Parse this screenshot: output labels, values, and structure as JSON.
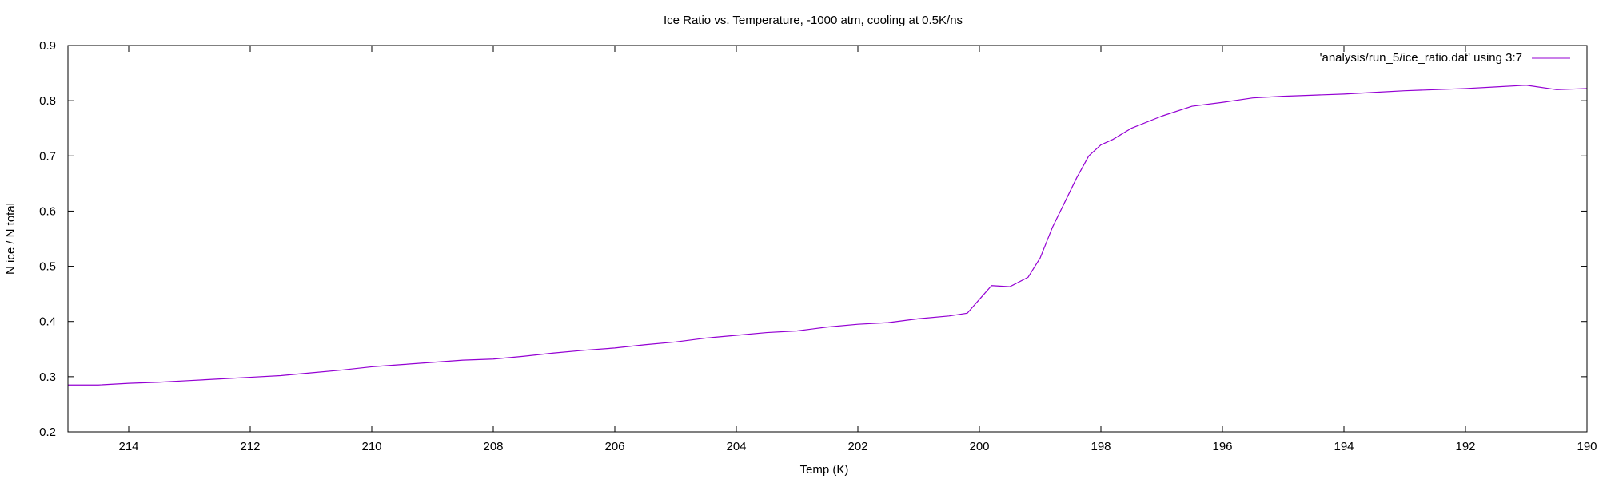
{
  "chart_data": {
    "type": "line",
    "title": "Ice Ratio vs. Temperature, -1000 atm, cooling at 0.5K/ns",
    "xlabel": "Temp (K)",
    "ylabel": "N ice / N total",
    "xlim": [
      215,
      190
    ],
    "ylim": [
      0.2,
      0.9
    ],
    "x_reversed": true,
    "x_ticks": [
      214,
      212,
      210,
      208,
      206,
      204,
      202,
      200,
      198,
      196,
      194,
      192,
      190
    ],
    "y_ticks": [
      0.2,
      0.3,
      0.4,
      0.5,
      0.6,
      0.7,
      0.8,
      0.9
    ],
    "x_tick_labels": [
      "214",
      "212",
      "210",
      "208",
      "206",
      "204",
      "202",
      "200",
      "198",
      "196",
      "194",
      "192",
      "190"
    ],
    "y_tick_labels": [
      "0.2",
      "0.3",
      "0.4",
      "0.5",
      "0.6",
      "0.7",
      "0.8",
      "0.9"
    ],
    "grid": false,
    "legend_position": "top-right",
    "series": [
      {
        "name": "'analysis/run_5/ice_ratio.dat' using 3:7",
        "color": "#9400d3",
        "x": [
          215,
          214.5,
          214,
          213.5,
          213,
          212.5,
          212,
          211.5,
          211,
          210.5,
          210,
          209.5,
          209,
          208.5,
          208,
          207.5,
          207,
          206.5,
          206,
          205.5,
          205,
          204.5,
          204,
          203.5,
          203,
          202.5,
          202,
          201.5,
          201,
          200.5,
          200.2,
          200,
          199.8,
          199.5,
          199.2,
          199,
          198.8,
          198.6,
          198.4,
          198.2,
          198,
          197.8,
          197.5,
          197,
          196.5,
          196,
          195.5,
          195,
          194.5,
          194,
          193.5,
          193,
          192.5,
          192,
          191.5,
          191,
          190.5,
          190
        ],
        "y": [
          0.285,
          0.285,
          0.288,
          0.29,
          0.293,
          0.296,
          0.299,
          0.302,
          0.307,
          0.312,
          0.318,
          0.322,
          0.326,
          0.33,
          0.332,
          0.337,
          0.343,
          0.348,
          0.352,
          0.358,
          0.363,
          0.37,
          0.375,
          0.38,
          0.383,
          0.39,
          0.395,
          0.398,
          0.405,
          0.41,
          0.415,
          0.44,
          0.465,
          0.463,
          0.48,
          0.515,
          0.57,
          0.615,
          0.66,
          0.7,
          0.72,
          0.73,
          0.75,
          0.772,
          0.79,
          0.797,
          0.805,
          0.808,
          0.81,
          0.812,
          0.815,
          0.818,
          0.82,
          0.822,
          0.825,
          0.828,
          0.82,
          0.822
        ]
      }
    ]
  }
}
